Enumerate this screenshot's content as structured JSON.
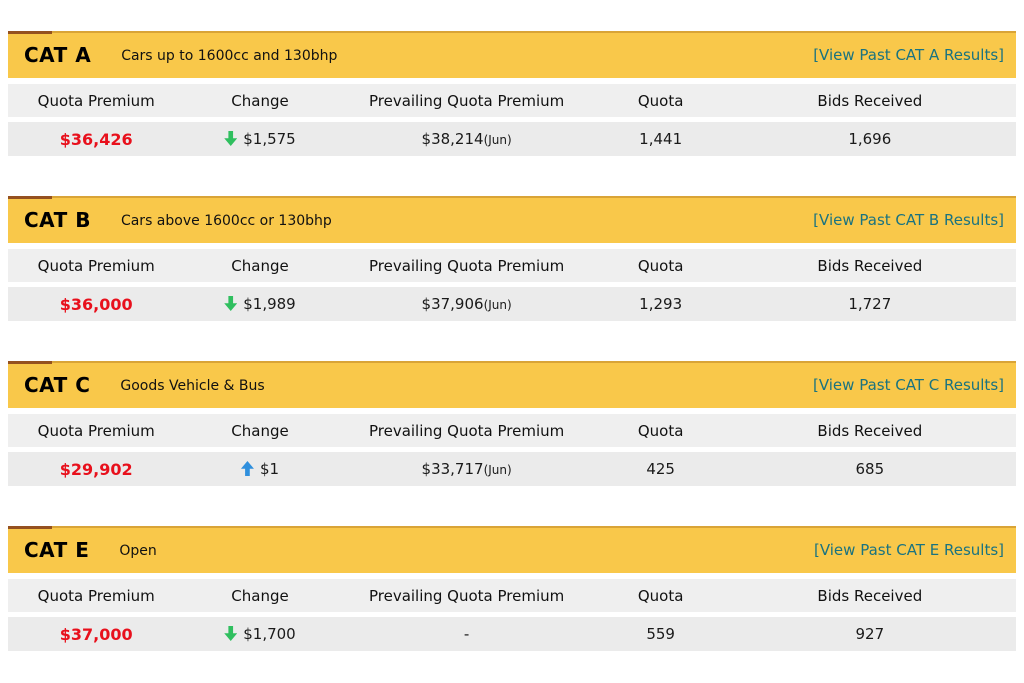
{
  "columns": [
    "Quota Premium",
    "Change",
    "Prevailing Quota Premium",
    "Quota",
    "Bids Received"
  ],
  "colors": {
    "band_yellow": "#f9c84a",
    "band_accent": "#95511f",
    "link_teal": "#1a7380",
    "premium_red": "#e8101c",
    "arrow_down_green": "#2fbf5f",
    "arrow_up_blue": "#2f8fdd",
    "row_gray": "#ebebeb"
  },
  "sections": [
    {
      "code": "CAT A",
      "description": "Cars up to 1600cc and 130bhp",
      "link": "[View Past CAT A Results]",
      "row": {
        "quota_premium": "$36,426",
        "arrow_class": "arrow arrow-down",
        "change_amount": "$1,575",
        "prevailing_premium": "$38,214",
        "prevailing_month": "(Jun)",
        "quota": "1,441",
        "bids_received": "1,696"
      }
    },
    {
      "code": "CAT B",
      "description": "Cars above 1600cc or 130bhp",
      "link": "[View Past CAT B Results]",
      "row": {
        "quota_premium": "$36,000",
        "arrow_class": "arrow arrow-down",
        "change_amount": "$1,989",
        "prevailing_premium": "$37,906",
        "prevailing_month": "(Jun)",
        "quota": "1,293",
        "bids_received": "1,727"
      }
    },
    {
      "code": "CAT C",
      "description": "Goods Vehicle & Bus",
      "link": "[View Past CAT C Results]",
      "row": {
        "quota_premium": "$29,902",
        "arrow_class": "arrow arrow-up",
        "change_amount": "$1",
        "prevailing_premium": "$33,717",
        "prevailing_month": "(Jun)",
        "quota": "425",
        "bids_received": "685"
      }
    },
    {
      "code": "CAT E",
      "description": "Open",
      "link": "[View Past CAT E Results]",
      "row": {
        "quota_premium": "$37,000",
        "arrow_class": "arrow arrow-down",
        "change_amount": "$1,700",
        "prevailing_premium": "-",
        "prevailing_month": "",
        "quota": "559",
        "bids_received": "927"
      }
    }
  ]
}
